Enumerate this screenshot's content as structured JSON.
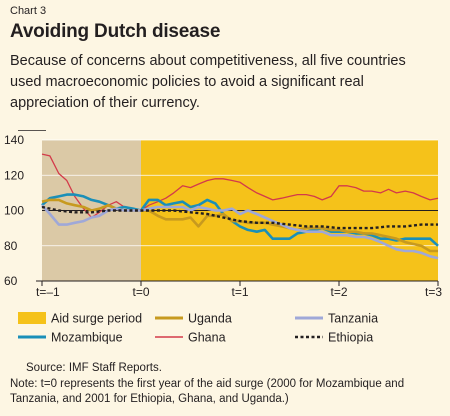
{
  "header": {
    "chart_label": "Chart 3",
    "title": "Avoiding Dutch disease",
    "subtitle": "Because of concerns about competitiveness, all five countries used macroeconomic policies to avoid a significant real appreciation of their currency."
  },
  "footer": {
    "source": "Source: IMF Staff Reports.",
    "note": "Note: t=0 represents the first year of the aid surge (2000 for Mozambique and Tanzania, and 2001 for Ethiopia, Ghana, and Uganda.)"
  },
  "colors": {
    "background": "#fdf6e3",
    "pre_surge": "#dbc9a6",
    "aid_surge": "#f5c21a",
    "Uganda": "#c79a1f",
    "Tanzania": "#9fa8d8",
    "Mozambique": "#1a8fb8",
    "Ghana": "#d33a4a",
    "Ethiopia": "#231f20",
    "Reference": "#231f20"
  },
  "chart_data": {
    "type": "line",
    "x_ticks": [
      -1,
      0,
      1,
      2,
      3
    ],
    "x_tick_labels": [
      "t=–1",
      "t=0",
      "t=1",
      "t=2",
      "t=3"
    ],
    "xlim": [
      -1,
      3
    ],
    "ylim": [
      60,
      140
    ],
    "y_ticks": [
      60,
      80,
      100,
      120,
      140
    ],
    "y_tick_labels": [
      "60",
      "80",
      "100",
      "120",
      "140"
    ],
    "aid_surge_start": 0,
    "legend_placement": "bottom",
    "legend": [
      {
        "key": "aid_surge",
        "label": "Aid surge period",
        "style": "box"
      },
      {
        "key": "Uganda",
        "label": "Uganda",
        "style": "thick"
      },
      {
        "key": "Tanzania",
        "label": "Tanzania",
        "style": "thick"
      },
      {
        "key": "Mozambique",
        "label": "Mozambique",
        "style": "thick"
      },
      {
        "key": "Ghana",
        "label": "Ghana",
        "style": "thin"
      },
      {
        "key": "Ethiopia",
        "label": "Ethiopia",
        "style": "dotted"
      },
      {
        "key": "Reference",
        "label": "Reference line = 100",
        "style": "thin"
      }
    ],
    "reference_line": 100,
    "series": [
      {
        "name": "Ghana",
        "points": [
          [
            -1,
            132
          ],
          [
            -0.92,
            131
          ],
          [
            -0.83,
            121
          ],
          [
            -0.75,
            117
          ],
          [
            -0.67,
            108
          ],
          [
            -0.58,
            101
          ],
          [
            -0.5,
            96
          ],
          [
            -0.42,
            99
          ],
          [
            -0.33,
            103
          ],
          [
            -0.25,
            105
          ],
          [
            -0.17,
            102
          ],
          [
            -0.08,
            100
          ],
          [
            0,
            100
          ],
          [
            0.08,
            103
          ],
          [
            0.17,
            105
          ],
          [
            0.25,
            107
          ],
          [
            0.33,
            110
          ],
          [
            0.42,
            114
          ],
          [
            0.5,
            113
          ],
          [
            0.58,
            115
          ],
          [
            0.67,
            117
          ],
          [
            0.75,
            118
          ],
          [
            0.83,
            118
          ],
          [
            0.92,
            117
          ],
          [
            1,
            116
          ],
          [
            1.08,
            113
          ],
          [
            1.17,
            110
          ],
          [
            1.25,
            108
          ],
          [
            1.33,
            106
          ],
          [
            1.42,
            107
          ],
          [
            1.5,
            108
          ],
          [
            1.58,
            109
          ],
          [
            1.67,
            109
          ],
          [
            1.75,
            108
          ],
          [
            1.83,
            106
          ],
          [
            1.92,
            108
          ],
          [
            2,
            114
          ],
          [
            2.08,
            114
          ],
          [
            2.17,
            113
          ],
          [
            2.25,
            111
          ],
          [
            2.33,
            111
          ],
          [
            2.42,
            110
          ],
          [
            2.5,
            112
          ],
          [
            2.58,
            110
          ],
          [
            2.67,
            111
          ],
          [
            2.75,
            110
          ],
          [
            2.83,
            108
          ],
          [
            2.92,
            106
          ],
          [
            3,
            107
          ]
        ]
      },
      {
        "name": "Mozambique",
        "points": [
          [
            -1,
            103
          ],
          [
            -0.92,
            107
          ],
          [
            -0.83,
            108
          ],
          [
            -0.75,
            109
          ],
          [
            -0.67,
            109
          ],
          [
            -0.58,
            108
          ],
          [
            -0.5,
            106
          ],
          [
            -0.42,
            105
          ],
          [
            -0.33,
            103
          ],
          [
            -0.25,
            101
          ],
          [
            -0.17,
            102
          ],
          [
            -0.08,
            101
          ],
          [
            0,
            100
          ],
          [
            0.08,
            106
          ],
          [
            0.17,
            106
          ],
          [
            0.25,
            103
          ],
          [
            0.33,
            104
          ],
          [
            0.42,
            105
          ],
          [
            0.5,
            102
          ],
          [
            0.58,
            103
          ],
          [
            0.67,
            106
          ],
          [
            0.75,
            104
          ],
          [
            0.83,
            98
          ],
          [
            0.92,
            94
          ],
          [
            1,
            91
          ],
          [
            1.08,
            89
          ],
          [
            1.17,
            88
          ],
          [
            1.25,
            89
          ],
          [
            1.33,
            84
          ],
          [
            1.42,
            84
          ],
          [
            1.5,
            84
          ],
          [
            1.58,
            87
          ],
          [
            1.67,
            88
          ],
          [
            1.75,
            89
          ],
          [
            1.83,
            90
          ],
          [
            1.92,
            88
          ],
          [
            2,
            88
          ],
          [
            2.08,
            88
          ],
          [
            2.17,
            87
          ],
          [
            2.25,
            87
          ],
          [
            2.33,
            86
          ],
          [
            2.42,
            84
          ],
          [
            2.5,
            84
          ],
          [
            2.58,
            83
          ],
          [
            2.67,
            84
          ],
          [
            2.75,
            84
          ],
          [
            2.83,
            84
          ],
          [
            2.92,
            84
          ],
          [
            3,
            80
          ]
        ]
      },
      {
        "name": "Uganda",
        "points": [
          [
            -1,
            105
          ],
          [
            -0.92,
            106
          ],
          [
            -0.83,
            106
          ],
          [
            -0.75,
            104
          ],
          [
            -0.67,
            103
          ],
          [
            -0.58,
            102
          ],
          [
            -0.5,
            100
          ],
          [
            -0.42,
            101
          ],
          [
            -0.33,
            103
          ],
          [
            -0.25,
            101
          ],
          [
            -0.17,
            100
          ],
          [
            -0.08,
            100
          ],
          [
            0,
            100
          ],
          [
            0.08,
            100
          ],
          [
            0.17,
            97
          ],
          [
            0.25,
            95
          ],
          [
            0.33,
            95
          ],
          [
            0.42,
            95
          ],
          [
            0.5,
            96
          ],
          [
            0.58,
            91
          ],
          [
            0.67,
            97
          ],
          [
            0.75,
            97
          ],
          [
            0.83,
            98
          ],
          [
            0.92,
            94
          ],
          [
            1,
            94
          ],
          [
            1.08,
            93
          ],
          [
            1.17,
            93
          ],
          [
            1.25,
            93
          ],
          [
            1.33,
            92
          ],
          [
            1.42,
            91
          ],
          [
            1.5,
            90
          ],
          [
            1.58,
            89
          ],
          [
            1.67,
            90
          ],
          [
            1.75,
            90
          ],
          [
            1.83,
            90
          ],
          [
            1.92,
            89
          ],
          [
            2,
            89
          ],
          [
            2.08,
            88
          ],
          [
            2.17,
            88
          ],
          [
            2.25,
            87
          ],
          [
            2.33,
            87
          ],
          [
            2.42,
            86
          ],
          [
            2.5,
            85
          ],
          [
            2.58,
            84
          ],
          [
            2.67,
            82
          ],
          [
            2.75,
            81
          ],
          [
            2.83,
            80
          ],
          [
            2.92,
            77
          ],
          [
            3,
            77
          ]
        ]
      },
      {
        "name": "Tanzania",
        "points": [
          [
            -1,
            103
          ],
          [
            -0.92,
            98
          ],
          [
            -0.83,
            92
          ],
          [
            -0.75,
            92
          ],
          [
            -0.67,
            93
          ],
          [
            -0.58,
            94
          ],
          [
            -0.5,
            96
          ],
          [
            -0.42,
            97
          ],
          [
            -0.33,
            100
          ],
          [
            -0.25,
            101
          ],
          [
            -0.17,
            100
          ],
          [
            -0.08,
            100
          ],
          [
            0,
            100
          ],
          [
            0.08,
            101
          ],
          [
            0.17,
            102
          ],
          [
            0.25,
            102
          ],
          [
            0.33,
            102
          ],
          [
            0.42,
            102
          ],
          [
            0.5,
            100
          ],
          [
            0.58,
            102
          ],
          [
            0.67,
            101
          ],
          [
            0.75,
            100
          ],
          [
            0.83,
            100
          ],
          [
            0.92,
            101
          ],
          [
            1,
            98
          ],
          [
            1.08,
            100
          ],
          [
            1.17,
            98
          ],
          [
            1.25,
            96
          ],
          [
            1.33,
            94
          ],
          [
            1.42,
            92
          ],
          [
            1.5,
            90
          ],
          [
            1.58,
            89
          ],
          [
            1.67,
            88
          ],
          [
            1.75,
            88
          ],
          [
            1.83,
            88
          ],
          [
            1.92,
            86
          ],
          [
            2,
            86
          ],
          [
            2.08,
            86
          ],
          [
            2.17,
            85
          ],
          [
            2.25,
            85
          ],
          [
            2.33,
            84
          ],
          [
            2.42,
            82
          ],
          [
            2.5,
            80
          ],
          [
            2.58,
            78
          ],
          [
            2.67,
            77
          ],
          [
            2.75,
            77
          ],
          [
            2.83,
            76
          ],
          [
            2.92,
            74
          ],
          [
            3,
            73
          ]
        ]
      },
      {
        "name": "Ethiopia",
        "points": [
          [
            -1,
            102
          ],
          [
            -0.83,
            100
          ],
          [
            -0.67,
            99
          ],
          [
            -0.5,
            99
          ],
          [
            -0.33,
            100
          ],
          [
            -0.17,
            100
          ],
          [
            0,
            100
          ],
          [
            0.17,
            100
          ],
          [
            0.33,
            100
          ],
          [
            0.5,
            99
          ],
          [
            0.67,
            98
          ],
          [
            0.83,
            96
          ],
          [
            1,
            94
          ],
          [
            1.17,
            93
          ],
          [
            1.33,
            93
          ],
          [
            1.5,
            92
          ],
          [
            1.67,
            91
          ],
          [
            1.83,
            91
          ],
          [
            2,
            90
          ],
          [
            2.17,
            90
          ],
          [
            2.33,
            90
          ],
          [
            2.5,
            91
          ],
          [
            2.67,
            91
          ],
          [
            2.83,
            92
          ],
          [
            3,
            92
          ]
        ]
      }
    ]
  }
}
